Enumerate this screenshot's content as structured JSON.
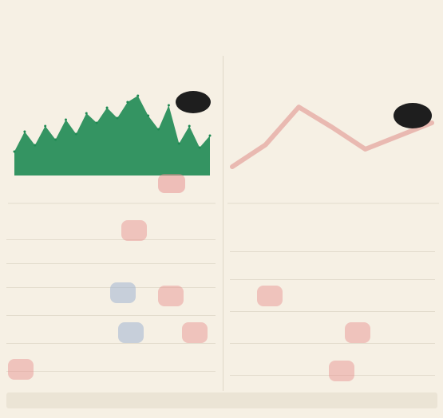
{
  "header": {
    "title": "",
    "subtitle": ""
  },
  "panels": [
    {
      "title": ""
    },
    {
      "title": ""
    }
  ],
  "colors": {
    "background": "#f6f0e4",
    "area": "#1f8a53",
    "line": "#e9b9b1",
    "bubble": "#1e1e1e",
    "marker_pink": "#e68c8c",
    "marker_blue": "#a0b4d2"
  },
  "chart_data": [
    {
      "type": "area",
      "title": "",
      "x": [
        0,
        1,
        2,
        3,
        4,
        5,
        6,
        7,
        8,
        9,
        10,
        11,
        12,
        13,
        14,
        15,
        16,
        17,
        18,
        19
      ],
      "values": [
        30,
        55,
        38,
        62,
        45,
        70,
        52,
        78,
        66,
        85,
        72,
        92,
        100,
        75,
        58,
        88,
        40,
        62,
        35,
        50
      ],
      "ylim": [
        0,
        110
      ],
      "xlabel": "",
      "ylabel": ""
    },
    {
      "type": "line",
      "title": "",
      "x": [
        0,
        1,
        2,
        3,
        4,
        5,
        6
      ],
      "values": [
        10,
        35,
        78,
        55,
        30,
        45,
        60
      ],
      "ylim": [
        0,
        100
      ],
      "xlabel": "",
      "ylabel": ""
    }
  ],
  "table_rows_left": [
    "",
    "",
    "",
    "",
    "",
    ""
  ],
  "table_rows_right": [
    "",
    "",
    "",
    "",
    ""
  ],
  "footer": {
    "text": ""
  }
}
